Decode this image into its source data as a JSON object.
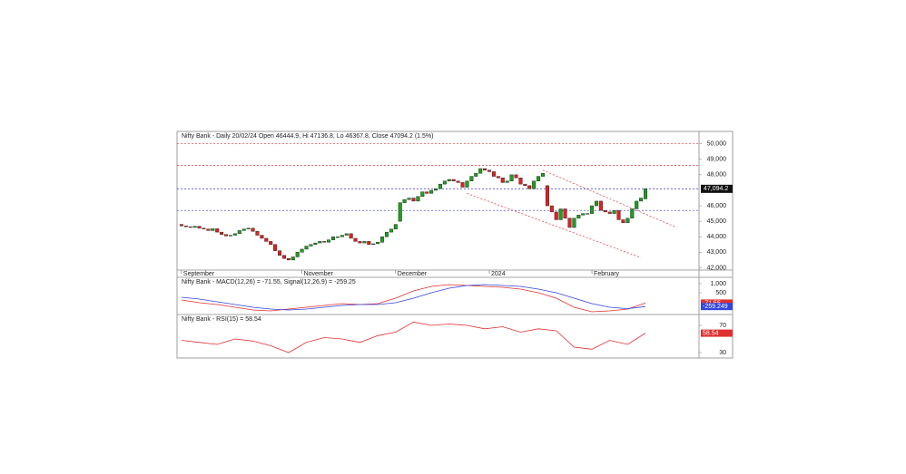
{
  "chart_data": [
    {
      "type": "candlestick",
      "title": "Nifty Bank - Daily 20/02/24 Open 46444.9, Hi 47136.8, Lo 46367.8, Close 47094.2 (1.5%)",
      "categories": [
        "September",
        null,
        null,
        null,
        null,
        null,
        null,
        null,
        null,
        null,
        null,
        null,
        null,
        null,
        null,
        null,
        null,
        null,
        null,
        null,
        null,
        null,
        null,
        null,
        null,
        null,
        null,
        "November",
        null,
        null,
        null,
        null,
        null,
        null,
        null,
        null,
        null,
        null,
        null,
        null,
        null,
        null,
        null,
        null,
        null,
        null,
        null,
        null,
        "December",
        null,
        null,
        null,
        null,
        null,
        null,
        null,
        null,
        null,
        null,
        null,
        null,
        null,
        null,
        null,
        null,
        null,
        null,
        null,
        null,
        "2024",
        null,
        null,
        null,
        null,
        null,
        null,
        null,
        null,
        null,
        null,
        null,
        null,
        null,
        null,
        null,
        null,
        null,
        null,
        null,
        null,
        null,
        null,
        "February",
        null,
        null,
        null,
        null,
        null,
        null,
        null,
        null,
        null,
        null,
        null,
        null
      ],
      "open": [
        44800,
        44700,
        44650,
        44600,
        44680,
        44550,
        44500,
        44400,
        44520,
        44300,
        44150,
        44050,
        44100,
        44200,
        44400,
        44500,
        44550,
        44350,
        44100,
        43900,
        43700,
        43500,
        43100,
        42800,
        42600,
        42500,
        42700,
        43000,
        43200,
        43400,
        43500,
        43600,
        43700,
        43650,
        43800,
        44000,
        44000,
        44100,
        44200,
        43900,
        43700,
        43600,
        43700,
        43500,
        43550,
        43650,
        44000,
        44300,
        44500,
        45000,
        46200,
        46400,
        46500,
        46300,
        46600,
        46900,
        46800,
        47000,
        47100,
        47400,
        47600,
        47700,
        47600,
        47500,
        47200,
        47600,
        47900,
        48100,
        48400,
        48300,
        48200,
        47900,
        47800,
        47500,
        47600,
        48000,
        47800,
        47400,
        47300,
        47100,
        47600,
        47900,
        47300,
        46000,
        45600,
        45100,
        45800,
        45200,
        44600,
        45200,
        45400,
        45500,
        45500,
        46000,
        46300,
        45700,
        45600,
        45500,
        45700,
        45100,
        44900,
        45200,
        45800,
        46300,
        46444.9
      ],
      "close": [
        44700,
        44650,
        44600,
        44680,
        44550,
        44500,
        44400,
        44520,
        44300,
        44150,
        44050,
        44100,
        44200,
        44400,
        44500,
        44550,
        44350,
        44100,
        43900,
        43700,
        43500,
        43100,
        42800,
        42600,
        42500,
        42700,
        43000,
        43200,
        43400,
        43500,
        43600,
        43700,
        43650,
        43800,
        44000,
        44000,
        44100,
        44200,
        43900,
        43700,
        43600,
        43700,
        43500,
        43550,
        43650,
        44000,
        44300,
        44500,
        44800,
        46200,
        46400,
        46500,
        46300,
        46600,
        46900,
        46800,
        47000,
        47100,
        47400,
        47600,
        47700,
        47600,
        47500,
        47200,
        47600,
        47900,
        48100,
        48400,
        48300,
        48200,
        47900,
        47800,
        47500,
        47600,
        48000,
        47800,
        47400,
        47300,
        47100,
        47600,
        47900,
        48100,
        46000,
        45600,
        45100,
        45800,
        45200,
        44600,
        45200,
        45400,
        45500,
        45500,
        46000,
        46300,
        45700,
        45600,
        45500,
        45700,
        45100,
        44900,
        45200,
        45800,
        46300,
        46500,
        47094.2
      ],
      "up_color": "#1f9e1f",
      "down_color": "#e02020",
      "xlim": [
        -1,
        116
      ],
      "ylim": [
        41850,
        50800
      ],
      "yticks": [
        {
          "value": 42000,
          "label": "42,000"
        },
        {
          "value": 43000,
          "label": "43,000"
        },
        {
          "value": 44000,
          "label": "44,000"
        },
        {
          "value": 45000,
          "label": "45,000"
        },
        {
          "value": 46000,
          "label": "46,000"
        },
        {
          "value": 48000,
          "label": "48,000"
        },
        {
          "value": 49000,
          "label": "49,000"
        },
        {
          "value": 50000,
          "label": "50,000"
        }
      ],
      "last_price": {
        "value": 47094.2,
        "label": "47,094.2"
      },
      "levels": [
        {
          "value": 50000,
          "color": "#e03030"
        },
        {
          "value": 48600,
          "color": "#e03030"
        },
        {
          "value": 47100,
          "color": "#3333cc"
        },
        {
          "value": 45700,
          "color": "#3333cc"
        }
      ],
      "trendlines": [
        {
          "x": [
            81,
            111
          ],
          "y": [
            48300,
            44600
          ],
          "color": "#e03030"
        },
        {
          "x": [
            64,
            103
          ],
          "y": [
            46800,
            42650
          ],
          "color": "#e03030"
        }
      ]
    },
    {
      "type": "line",
      "title": "Nifty Bank - MACD(12,26) = -71.55, Signal(12,26,9) = -259.25",
      "x": [
        0,
        4,
        8,
        12,
        16,
        20,
        24,
        28,
        32,
        36,
        40,
        44,
        48,
        52,
        56,
        60,
        64,
        68,
        72,
        76,
        80,
        84,
        88,
        92,
        96,
        100,
        104
      ],
      "series": [
        {
          "name": "MACD",
          "color": "#e03030",
          "values": [
            100,
            -50,
            -150,
            -300,
            -450,
            -500,
            -400,
            -300,
            -200,
            -100,
            -150,
            -100,
            200,
            600,
            850,
            950,
            900,
            850,
            800,
            700,
            500,
            200,
            -300,
            -550,
            -500,
            -400,
            -71.55
          ]
        },
        {
          "name": "Signal",
          "color": "#3344dd",
          "values": [
            250,
            150,
            0,
            -150,
            -300,
            -400,
            -450,
            -400,
            -300,
            -200,
            -150,
            -150,
            -50,
            200,
            500,
            750,
            900,
            950,
            900,
            850,
            700,
            500,
            200,
            -100,
            -300,
            -380,
            -259.25
          ]
        }
      ],
      "end_labels": [
        {
          "value": -71.55,
          "label": "-71.55",
          "color": "#e03030"
        },
        {
          "value": -259.249,
          "label": "-259.249",
          "color": "#3344dd"
        }
      ],
      "xlim": [
        -1,
        116
      ],
      "ylim": [
        -700,
        1350
      ],
      "yticks": [
        {
          "value": 1000,
          "label": "1,000"
        },
        500
      ]
    },
    {
      "type": "line",
      "title": "Nifty Bank - RSI(15) = 58.54",
      "x": [
        0,
        4,
        8,
        12,
        16,
        20,
        24,
        28,
        32,
        36,
        40,
        44,
        48,
        52,
        56,
        60,
        64,
        68,
        72,
        76,
        80,
        84,
        88,
        92,
        96,
        100,
        104
      ],
      "series": [
        {
          "name": "RSI",
          "color": "#e03030",
          "values": [
            48,
            45,
            42,
            50,
            47,
            40,
            30,
            45,
            52,
            50,
            45,
            55,
            60,
            75,
            70,
            72,
            70,
            65,
            68,
            60,
            65,
            62,
            38,
            35,
            48,
            42,
            58.54
          ]
        }
      ],
      "end_labels": [
        {
          "value": 58.54,
          "label": "58.54",
          "color": "#e03030"
        }
      ],
      "xlim": [
        -1,
        116
      ],
      "ylim": [
        22,
        86
      ],
      "yticks": [
        70,
        30
      ]
    }
  ]
}
